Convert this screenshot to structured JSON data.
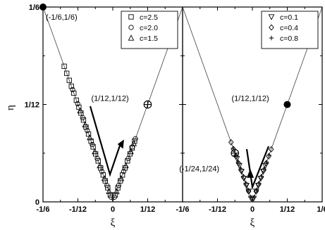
{
  "chart_data": [
    {
      "type": "scatter",
      "xlabel": "ξ",
      "ylabel": "η",
      "xlim": [
        -0.1667,
        0.1667
      ],
      "ylim": [
        0,
        0.1667
      ],
      "xticks": [
        "-1/6",
        "-1/12",
        "0",
        "1/12"
      ],
      "yticks": [
        "0",
        "1/12",
        "1/6"
      ],
      "grid": false,
      "legend": {
        "placement": "top-right",
        "entries": [
          {
            "label": "c=2.5",
            "marker": "square"
          },
          {
            "label": "c=2.0",
            "marker": "circle"
          },
          {
            "label": "c=1.5",
            "marker": "triangle-up"
          }
        ]
      },
      "boundary_lines": [
        {
          "x": [
            -0.1667,
            0
          ],
          "y": [
            0.1667,
            0
          ]
        },
        {
          "x": [
            0,
            0.1667
          ],
          "y": [
            0,
            0.1667
          ]
        }
      ],
      "annotations": [
        {
          "text": "(-1/6,1/6)",
          "x": -0.1667,
          "y": 0.1667,
          "marker": "filled-circle"
        },
        {
          "text": "(1/12,1/12)",
          "x": 0.0833,
          "y": 0.0833,
          "marker": "crossed-circle"
        }
      ],
      "series": [
        {
          "name": "c=2.5",
          "marker": "square",
          "points": [
            [
              -0.116,
              0.116
            ],
            [
              -0.11,
              0.11
            ],
            [
              -0.104,
              0.104
            ],
            [
              -0.099,
              0.099
            ],
            [
              -0.093,
              0.093
            ],
            [
              -0.087,
              0.087
            ],
            [
              -0.081,
              0.081
            ],
            [
              -0.076,
              0.076
            ],
            [
              -0.07,
              0.07
            ],
            [
              -0.064,
              0.064
            ],
            [
              -0.058,
              0.058
            ],
            [
              -0.052,
              0.052
            ],
            [
              -0.047,
              0.047
            ],
            [
              -0.041,
              0.041
            ],
            [
              -0.035,
              0.035
            ],
            [
              -0.029,
              0.029
            ],
            [
              -0.023,
              0.023
            ],
            [
              -0.018,
              0.018
            ],
            [
              -0.012,
              0.012
            ],
            [
              -0.006,
              0.006
            ],
            [
              0.006,
              0.006
            ],
            [
              0.012,
              0.012
            ],
            [
              0.018,
              0.018
            ],
            [
              0.023,
              0.023
            ],
            [
              0.029,
              0.029
            ],
            [
              0.035,
              0.035
            ],
            [
              0.041,
              0.041
            ],
            [
              0.046,
              0.046
            ],
            [
              0.052,
              0.052
            ]
          ]
        },
        {
          "name": "c=2.0",
          "marker": "circle",
          "points": [
            [
              -0.096,
              0.096
            ],
            [
              -0.084,
              0.084
            ],
            [
              -0.072,
              0.072
            ],
            [
              -0.061,
              0.061
            ],
            [
              -0.049,
              0.049
            ],
            [
              -0.037,
              0.037
            ],
            [
              -0.026,
              0.026
            ],
            [
              -0.014,
              0.014
            ],
            [
              -0.004,
              0.004
            ],
            [
              0.004,
              0.004
            ],
            [
              0.014,
              0.014
            ],
            [
              0.026,
              0.026
            ],
            [
              0.037,
              0.037
            ],
            [
              0.047,
              0.047
            ],
            [
              0.054,
              0.054
            ]
          ]
        },
        {
          "name": "c=1.5",
          "marker": "triangle-up",
          "points": [
            [
              -0.078,
              0.078
            ],
            [
              -0.066,
              0.066
            ],
            [
              -0.055,
              0.055
            ],
            [
              -0.043,
              0.043
            ],
            [
              -0.031,
              0.031
            ],
            [
              -0.02,
              0.02
            ],
            [
              -0.009,
              0.009
            ],
            [
              0.009,
              0.009
            ],
            [
              0.02,
              0.02
            ],
            [
              0.031,
              0.031
            ],
            [
              0.043,
              0.043
            ],
            [
              0.05,
              0.05
            ]
          ]
        }
      ]
    },
    {
      "type": "scatter",
      "xlabel": "ξ",
      "ylabel": "",
      "xlim": [
        -0.1667,
        0.1667
      ],
      "ylim": [
        0,
        0.1667
      ],
      "xticks": [
        "-1/6",
        "-1/12",
        "0",
        "1/12",
        "1/6"
      ],
      "grid": false,
      "legend": {
        "placement": "top-right",
        "entries": [
          {
            "label": "c=0.1",
            "marker": "triangle-down"
          },
          {
            "label": "c=0.4",
            "marker": "diamond"
          },
          {
            "label": "c=0.8",
            "marker": "plus"
          }
        ]
      },
      "boundary_lines": [
        {
          "x": [
            -0.1667,
            0
          ],
          "y": [
            0.1667,
            0
          ]
        },
        {
          "x": [
            0,
            0.1667
          ],
          "y": [
            0,
            0.1667
          ]
        }
      ],
      "annotations": [
        {
          "text": "(1/12,1/12)",
          "x": 0.0833,
          "y": 0.0833,
          "marker": "filled-circle"
        },
        {
          "text": "(-1/24,1/24)",
          "x": -0.0417,
          "y": 0.0417,
          "marker": "crossed-circle"
        }
      ],
      "series": [
        {
          "name": "c=0.1",
          "marker": "triangle-down",
          "points": [
            [
              -0.037,
              0.037
            ],
            [
              -0.031,
              0.031
            ],
            [
              -0.026,
              0.026
            ],
            [
              -0.02,
              0.02
            ],
            [
              -0.014,
              0.014
            ],
            [
              -0.009,
              0.009
            ],
            [
              -0.003,
              0.003
            ],
            [
              0.003,
              0.003
            ],
            [
              0.009,
              0.009
            ],
            [
              0.014,
              0.014
            ],
            [
              0.02,
              0.02
            ],
            [
              0.026,
              0.026
            ],
            [
              0.031,
              0.031
            ]
          ]
        },
        {
          "name": "c=0.4",
          "marker": "diamond",
          "points": [
            [
              -0.051,
              0.051
            ],
            [
              -0.045,
              0.045
            ],
            [
              -0.039,
              0.039
            ],
            [
              -0.033,
              0.033
            ],
            [
              -0.027,
              0.027
            ],
            [
              -0.021,
              0.021
            ],
            [
              -0.015,
              0.015
            ],
            [
              -0.009,
              0.009
            ],
            [
              0.009,
              0.009
            ],
            [
              0.015,
              0.015
            ],
            [
              0.021,
              0.021
            ],
            [
              0.027,
              0.027
            ],
            [
              0.033,
              0.033
            ],
            [
              0.039,
              0.039
            ],
            [
              0.045,
              0.045
            ]
          ]
        },
        {
          "name": "c=0.8",
          "marker": "plus",
          "points": [
            [
              -0.046,
              0.046
            ],
            [
              -0.04,
              0.04
            ],
            [
              -0.034,
              0.034
            ],
            [
              -0.028,
              0.028
            ],
            [
              -0.022,
              0.022
            ],
            [
              -0.016,
              0.016
            ],
            [
              -0.01,
              0.01
            ],
            [
              -0.004,
              0.004
            ],
            [
              0.004,
              0.004
            ],
            [
              0.01,
              0.01
            ],
            [
              0.016,
              0.016
            ],
            [
              0.022,
              0.022
            ],
            [
              0.028,
              0.028
            ],
            [
              0.034,
              0.034
            ],
            [
              0.04,
              0.04
            ]
          ]
        }
      ]
    }
  ]
}
